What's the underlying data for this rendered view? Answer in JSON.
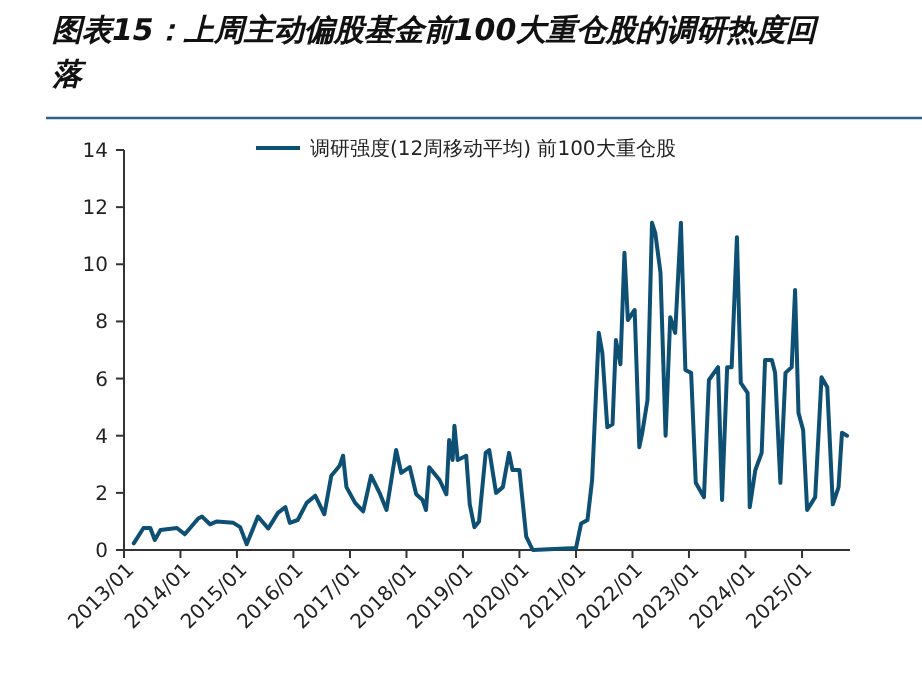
{
  "chart_data": {
    "type": "line",
    "title": "图表15：上周主动偏股基金前100大重仓股的调研热度回落",
    "series": [
      {
        "name": "调研强度(12周移动平均) 前100大重仓股",
        "color": "#0e4f74",
        "x": [
          "2013-03-05",
          "2013-05-07",
          "2013-06-20",
          "2013-07-19",
          "2013-08-25",
          "2013-12-09",
          "2014-01-29",
          "2014-04-26",
          "2014-05-21",
          "2014-07-11",
          "2014-08-25",
          "2014-12-09",
          "2015-01-22",
          "2015-03-05",
          "2015-05-17",
          "2015-07-22",
          "2015-09-23",
          "2015-11-10",
          "2015-12-09",
          "2016-01-29",
          "2016-03-27",
          "2016-05-21",
          "2016-07-19",
          "2016-09-02",
          "2016-10-26",
          "2016-11-17",
          "2016-12-09",
          "2017-02-03",
          "2017-03-27",
          "2017-05-17",
          "2017-07-11",
          "2017-08-25",
          "2017-10-26",
          "2017-11-28",
          "2018-01-22",
          "2018-03-05",
          "2018-04-15",
          "2018-05-07",
          "2018-05-28",
          "2018-08-03",
          "2018-09-16",
          "2018-10-04",
          "2018-10-26",
          "2018-11-07",
          "2018-11-28",
          "2019-01-22",
          "2019-02-14",
          "2019-03-16",
          "2019-04-15",
          "2019-05-28",
          "2019-06-20",
          "2019-08-03",
          "2019-09-16",
          "2019-10-26",
          "2019-11-17",
          "2020-01-01",
          "2020-02-14",
          "2020-03-27",
          "2021-01-01",
          "2021-02-03",
          "2021-03-16",
          "2021-04-15",
          "2021-05-28",
          "2021-06-20",
          "2021-07-22",
          "2021-08-25",
          "2021-09-16",
          "2021-10-15",
          "2021-11-10",
          "2021-12-02",
          "2022-01-15",
          "2022-02-14",
          "2022-03-05",
          "2022-04-08",
          "2022-05-07",
          "2022-05-28",
          "2022-07-01",
          "2022-08-03",
          "2022-09-02",
          "2022-10-04",
          "2022-11-10",
          "2022-12-09",
          "2023-01-15",
          "2023-02-14",
          "2023-04-08",
          "2023-05-10",
          "2023-07-08",
          "2023-08-03",
          "2023-09-05",
          "2023-10-04",
          "2023-11-07",
          "2023-12-02",
          "2024-01-15",
          "2024-01-29",
          "2024-03-05",
          "2024-04-15",
          "2024-05-07",
          "2024-06-20",
          "2024-07-11",
          "2024-08-14",
          "2024-09-16",
          "2024-10-26",
          "2024-11-17",
          "2024-12-09",
          "2025-01-08",
          "2025-02-03",
          "2025-03-27",
          "2025-05-07",
          "2025-06-13",
          "2025-07-19",
          "2025-08-25",
          "2025-09-16",
          "2025-10-19"
        ],
        "values": [
          0.23,
          0.77,
          0.77,
          0.35,
          0.7,
          0.77,
          0.55,
          1.1,
          1.17,
          0.9,
          1.0,
          0.95,
          0.8,
          0.2,
          1.17,
          0.75,
          1.3,
          1.5,
          0.95,
          1.05,
          1.65,
          1.9,
          1.25,
          2.6,
          2.95,
          3.3,
          2.2,
          1.65,
          1.35,
          2.6,
          2.0,
          1.4,
          3.5,
          2.7,
          2.9,
          1.95,
          1.75,
          1.4,
          2.9,
          2.45,
          1.95,
          3.85,
          3.15,
          4.35,
          3.15,
          3.3,
          1.6,
          0.8,
          1.0,
          3.4,
          3.5,
          2.0,
          2.2,
          3.4,
          2.8,
          2.8,
          0.47,
          0,
          0.07,
          0.93,
          1.05,
          2.45,
          7.6,
          6.9,
          4.3,
          4.4,
          7.35,
          6.5,
          10.4,
          8.05,
          8.4,
          3.6,
          4.1,
          5.25,
          11.45,
          11.1,
          9.7,
          4.0,
          8.15,
          7.6,
          11.45,
          6.3,
          6.2,
          2.35,
          1.85,
          5.95,
          6.4,
          1.75,
          6.4,
          6.4,
          10.95,
          5.85,
          5.5,
          1.5,
          2.8,
          3.4,
          6.65,
          6.65,
          6.2,
          2.35,
          6.2,
          6.4,
          9.1,
          4.8,
          4.2,
          1.4,
          1.85,
          6.05,
          5.7,
          1.6,
          2.2,
          4.1,
          4.0
        ]
      }
    ],
    "xlim": [
      "2013-01-01",
      "2025-11-07"
    ],
    "xticks": [
      {
        "value": "2013-01",
        "label": "2013/01"
      },
      {
        "value": "2014-01",
        "label": "2014/01"
      },
      {
        "value": "2015-01",
        "label": "2015/01"
      },
      {
        "value": "2016-01",
        "label": "2016/01"
      },
      {
        "value": "2017-01",
        "label": "2017/01"
      },
      {
        "value": "2018-01",
        "label": "2018/01"
      },
      {
        "value": "2019-01",
        "label": "2019/01"
      },
      {
        "value": "2020-01",
        "label": "2020/01"
      },
      {
        "value": "2021-01",
        "label": "2021/01"
      },
      {
        "value": "2022-01",
        "label": "2022/01"
      },
      {
        "value": "2023-01",
        "label": "2023/01"
      },
      {
        "value": "2024-01",
        "label": "2024/01"
      },
      {
        "value": "2025-01",
        "label": "2025/01"
      }
    ],
    "ylim": [
      0,
      14
    ],
    "yticks": [
      0,
      2,
      4,
      6,
      8,
      10,
      12,
      14
    ],
    "legend": "top",
    "grid": false,
    "line_style": "solid",
    "marker": "none"
  }
}
